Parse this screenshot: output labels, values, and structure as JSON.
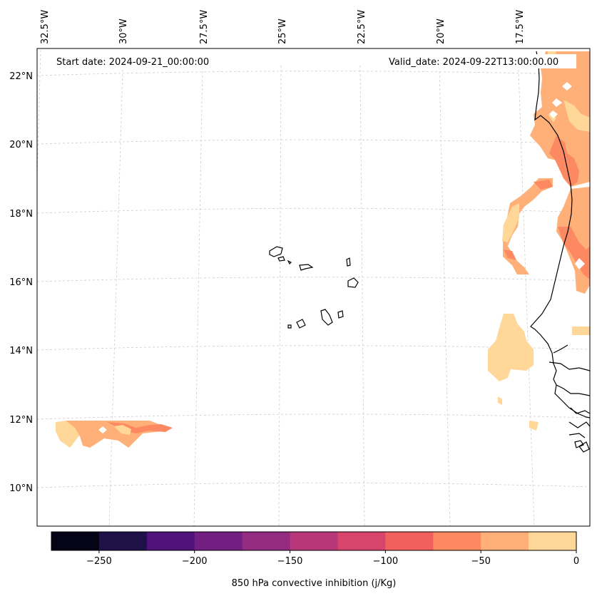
{
  "map": {
    "title_left": "Start date: 2024-09-21_00:00:00",
    "title_right": "Valid_date: 2024-09-22T13:00:00.00",
    "lon_labels": [
      "32.5°W",
      "30°W",
      "27.5°W",
      "25°W",
      "22.5°W",
      "20°W",
      "17.5°W"
    ],
    "lat_labels": [
      "22°N",
      "20°N",
      "18°N",
      "16°N",
      "14°N",
      "12°N",
      "10°N"
    ],
    "extent": {
      "lon_min": -32.6,
      "lon_max": -16.4,
      "lat_min": 8.9,
      "lat_max": 22.8
    }
  },
  "colorbar": {
    "label": "850 hPa convective inhibition (j/Kg)",
    "ticks": [
      "−250",
      "−200",
      "−150",
      "−100",
      "−50",
      "0"
    ],
    "levels": [
      -275,
      -250,
      -225,
      -200,
      -175,
      -150,
      -125,
      -100,
      -75,
      -50,
      -25,
      0
    ],
    "colors": [
      "#050416",
      "#1f1147",
      "#4f127b",
      "#721f81",
      "#932b80",
      "#b73779",
      "#d8456c",
      "#f1605d",
      "#fc8961",
      "#feb078",
      "#fed799"
    ]
  },
  "colors": {
    "gridline": "#cccccc",
    "coast": "#000000",
    "frame": "#000000"
  }
}
